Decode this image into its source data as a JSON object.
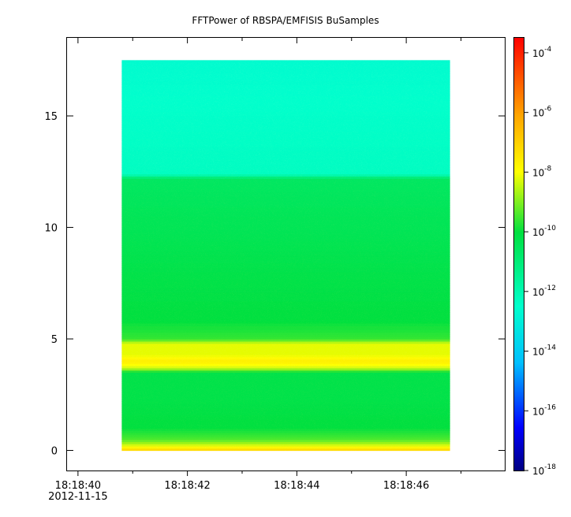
{
  "chart_data": {
    "type": "heatmap",
    "title": "FFTPower of RBSPA/EMFISIS  BuSamples",
    "xlabel": "",
    "ylabel": "",
    "x_ticks": [
      {
        "value": 40,
        "label": "18:18:40",
        "sublabel": "2012-11-15"
      },
      {
        "value": 42,
        "label": "18:18:42"
      },
      {
        "value": 44,
        "label": "18:18:44"
      },
      {
        "value": 46,
        "label": "18:18:46"
      }
    ],
    "x_minor_ticks": [
      41,
      43,
      45,
      47
    ],
    "xlim": [
      39.8,
      47.8
    ],
    "x_data_range": [
      40.8,
      46.8
    ],
    "y_ticks": [
      0,
      5,
      10,
      15
    ],
    "ylim": [
      -0.9,
      18.5
    ],
    "y_data_range": [
      0,
      17.5
    ],
    "grid": false,
    "colorbar": {
      "scale": "log",
      "min_exp": -18,
      "max_exp": -3.5,
      "ticks": [
        {
          "base": "10",
          "exp": "-4"
        },
        {
          "base": "10",
          "exp": "-6"
        },
        {
          "base": "10",
          "exp": "-8"
        },
        {
          "base": "10",
          "exp": "-10"
        },
        {
          "base": "10",
          "exp": "-12"
        },
        {
          "base": "10",
          "exp": "-14"
        },
        {
          "base": "10",
          "exp": "-16"
        },
        {
          "base": "10",
          "exp": "-18"
        }
      ],
      "colormap": [
        "#000080",
        "#0000ff",
        "#00c0ff",
        "#00ffcc",
        "#00e040",
        "#ffff00",
        "#ffa500",
        "#ff0000"
      ]
    },
    "power_profile_log10": [
      {
        "y": 0.0,
        "log10_power": -7.0
      },
      {
        "y": 0.15,
        "log10_power": -7.8
      },
      {
        "y": 0.3,
        "log10_power": -8.6
      },
      {
        "y": 0.5,
        "log10_power": -9.4
      },
      {
        "y": 1.0,
        "log10_power": -10.0
      },
      {
        "y": 2.5,
        "log10_power": -10.2
      },
      {
        "y": 3.5,
        "log10_power": -10.2
      },
      {
        "y": 3.7,
        "log10_power": -8.4
      },
      {
        "y": 4.0,
        "log10_power": -7.6
      },
      {
        "y": 4.3,
        "log10_power": -8.2
      },
      {
        "y": 4.8,
        "log10_power": -8.2
      },
      {
        "y": 5.0,
        "log10_power": -9.6
      },
      {
        "y": 5.8,
        "log10_power": -10.0
      },
      {
        "y": 12.2,
        "log10_power": -10.6
      },
      {
        "y": 12.4,
        "log10_power": -12.3
      },
      {
        "y": 17.5,
        "log10_power": -12.6
      }
    ]
  }
}
